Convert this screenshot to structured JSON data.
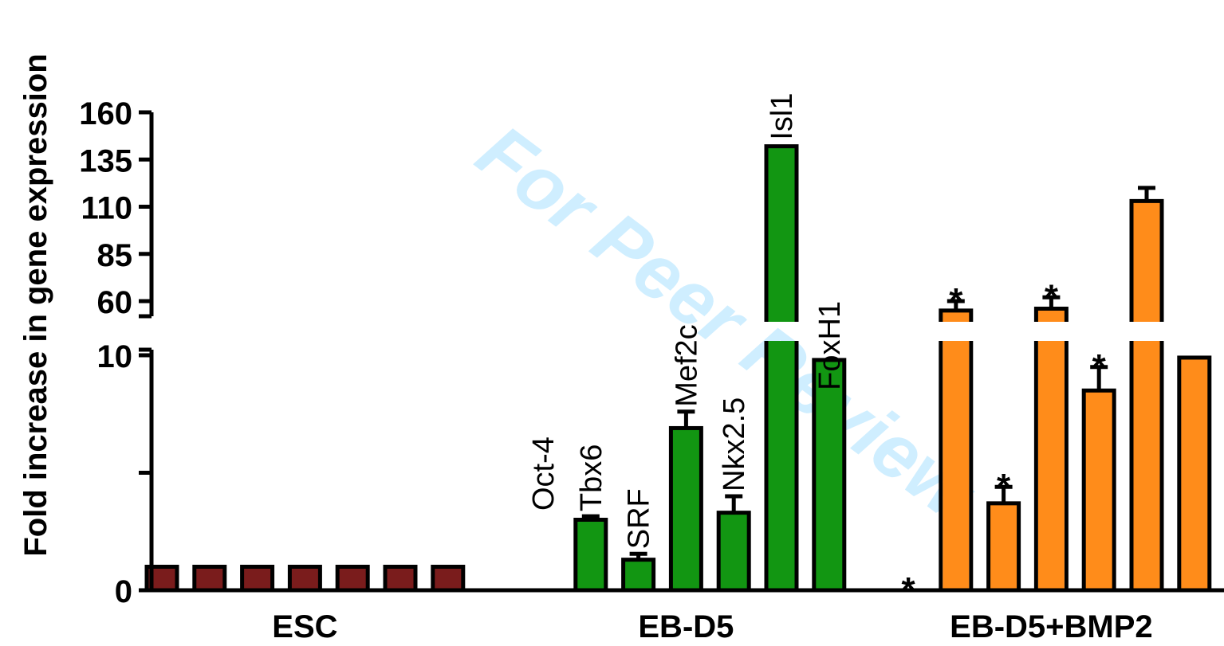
{
  "chart_data": {
    "type": "bar",
    "ylabel": "Fold increase in gene expression",
    "y_axis": {
      "scale": "broken",
      "lower_segment_range": [
        0,
        10
      ],
      "lower_ticks": [
        "0",
        "",
        "10"
      ],
      "upper_segment_range": [
        52,
        160
      ],
      "upper_ticks": [
        "60",
        "85",
        "110",
        "135",
        "160"
      ]
    },
    "genes": [
      "Oct-4",
      "Tbx6",
      "SRF",
      "Mef2c",
      "Nkx2.5",
      "Isl1",
      "FoxH1"
    ],
    "groups": [
      {
        "label": "ESC",
        "color": "#7a1c1c",
        "values": [
          1,
          1,
          1,
          1,
          1,
          1,
          1
        ],
        "errors": [
          0,
          0,
          0,
          0,
          0,
          0,
          0
        ],
        "asterisks": [
          false,
          false,
          false,
          false,
          false,
          false,
          false
        ],
        "gene_labels_shown": false
      },
      {
        "label": "EB-D5",
        "color": "#129612",
        "values": [
          0.02,
          3.0,
          1.3,
          6.9,
          3.3,
          142,
          9.8
        ],
        "errors": [
          0,
          0.15,
          0.25,
          0.7,
          0.7,
          0,
          0.5
        ],
        "asterisks": [
          false,
          false,
          false,
          false,
          false,
          false,
          false
        ],
        "gene_labels_shown": true
      },
      {
        "label": "EB-D5+BMP2",
        "color": "#ff8c1a",
        "values": [
          0.02,
          55,
          3.7,
          56,
          8.5,
          113,
          9.9
        ],
        "errors": [
          0,
          5,
          0.7,
          6,
          1.0,
          7,
          0.4
        ],
        "asterisks": [
          true,
          true,
          true,
          true,
          true,
          false,
          false
        ],
        "gene_labels_shown": false
      }
    ],
    "watermark": "For Peer Review"
  }
}
